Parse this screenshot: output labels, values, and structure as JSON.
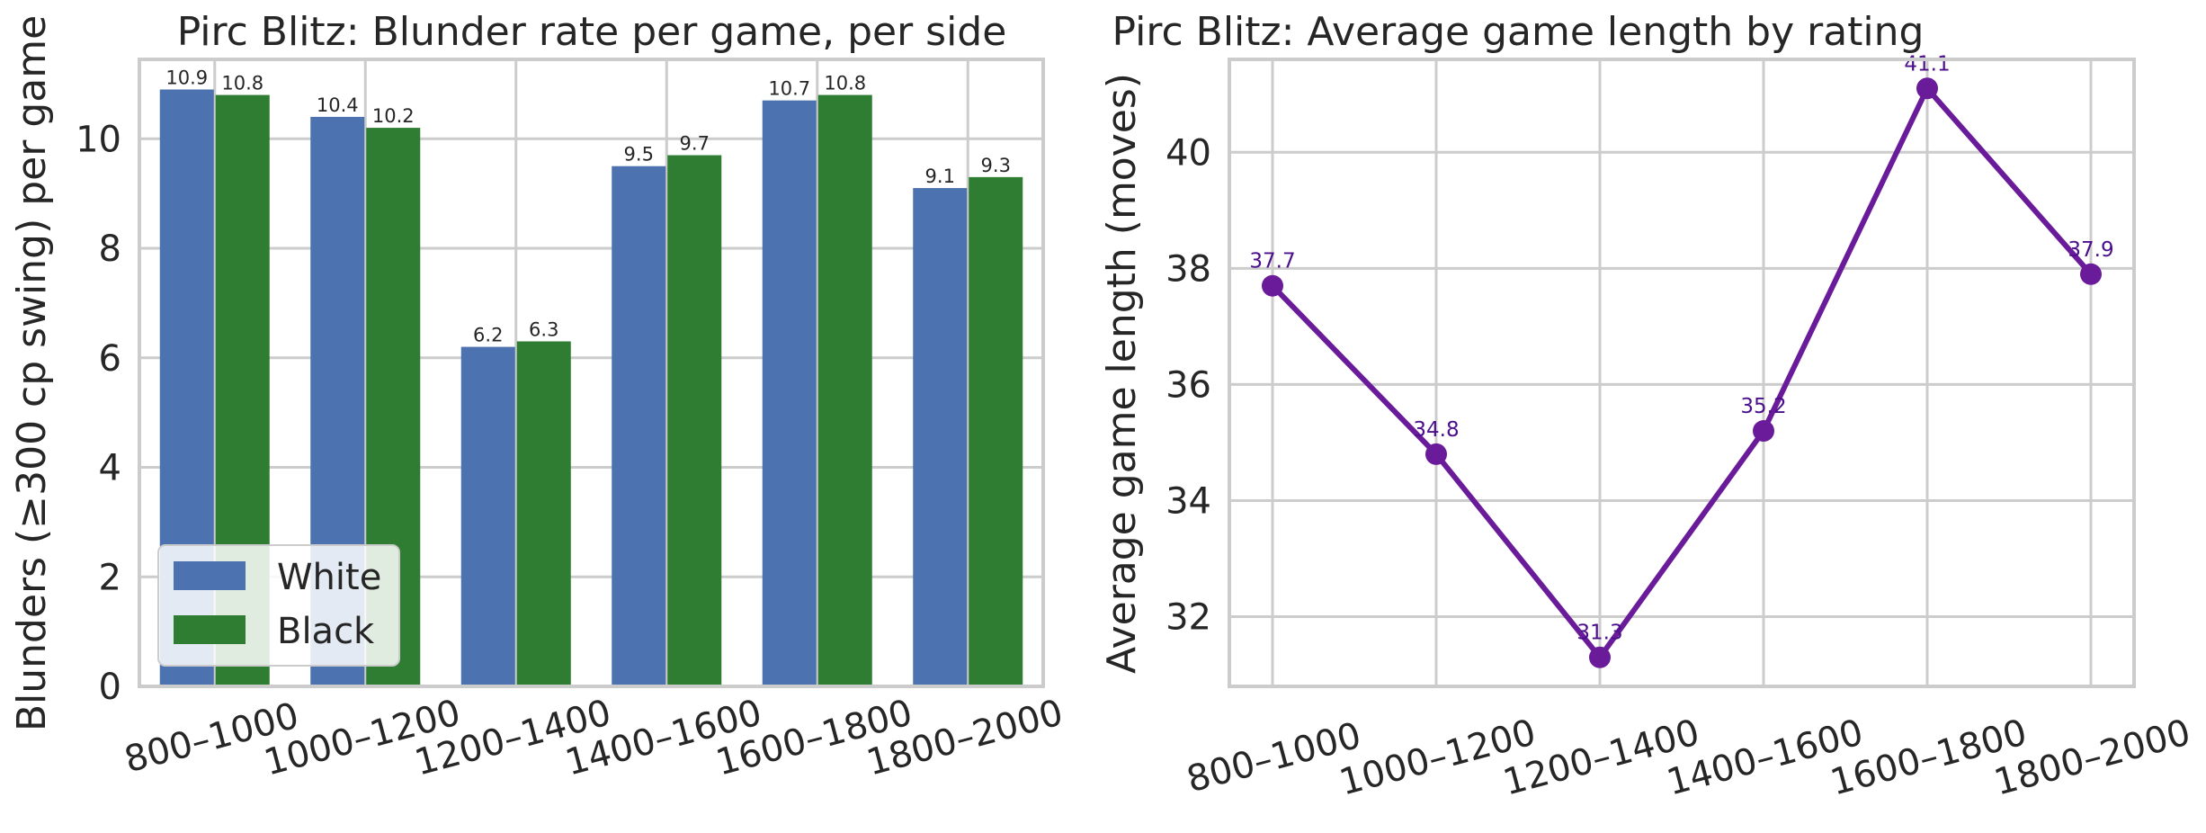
{
  "chart_data": [
    {
      "type": "bar",
      "title": "Pirc Blitz: Blunder rate per game, per side",
      "xlabel": "",
      "ylabel": "Blunders (≥300 cp swing) per game",
      "categories": [
        "800–1000",
        "1000–1200",
        "1200–1400",
        "1400–1600",
        "1600–1800",
        "1800–2000"
      ],
      "series": [
        {
          "name": "White",
          "color": "#4c72b0",
          "values": [
            10.9,
            10.4,
            6.2,
            9.5,
            10.7,
            9.1
          ],
          "labels": [
            "10.9",
            "10.4",
            "6.2",
            "9.5",
            "10.7",
            "9.1"
          ]
        },
        {
          "name": "Black",
          "color": "#2e7d32",
          "values": [
            10.8,
            10.2,
            6.3,
            9.7,
            10.8,
            9.3
          ],
          "labels": [
            "10.8",
            "10.2",
            "6.3",
            "9.7",
            "10.8",
            "9.3"
          ]
        }
      ],
      "ylim": [
        0,
        11.45
      ],
      "yticks": [
        0,
        2,
        4,
        6,
        8,
        10
      ],
      "ytick_labels": [
        "0",
        "2",
        "4",
        "6",
        "8",
        "10"
      ],
      "grid": true,
      "legend_position": "lower-left"
    },
    {
      "type": "line",
      "title": "Pirc Blitz: Average game length by rating",
      "xlabel": "",
      "ylabel": "Average game length (moves)",
      "categories": [
        "800–1000",
        "1000–1200",
        "1200–1400",
        "1400–1600",
        "1600–1800",
        "1800–2000"
      ],
      "series": [
        {
          "name": "",
          "color": "#6a1b9a",
          "values": [
            37.7,
            34.8,
            31.3,
            35.2,
            41.1,
            37.9
          ],
          "labels": [
            "37.7",
            "34.8",
            "31.3",
            "35.2",
            "41.1",
            "37.9"
          ]
        }
      ],
      "ylim": [
        30.8,
        41.6
      ],
      "yticks": [
        32,
        34,
        36,
        38,
        40
      ],
      "ytick_labels": [
        "32",
        "34",
        "36",
        "38",
        "40"
      ],
      "grid": true
    }
  ]
}
